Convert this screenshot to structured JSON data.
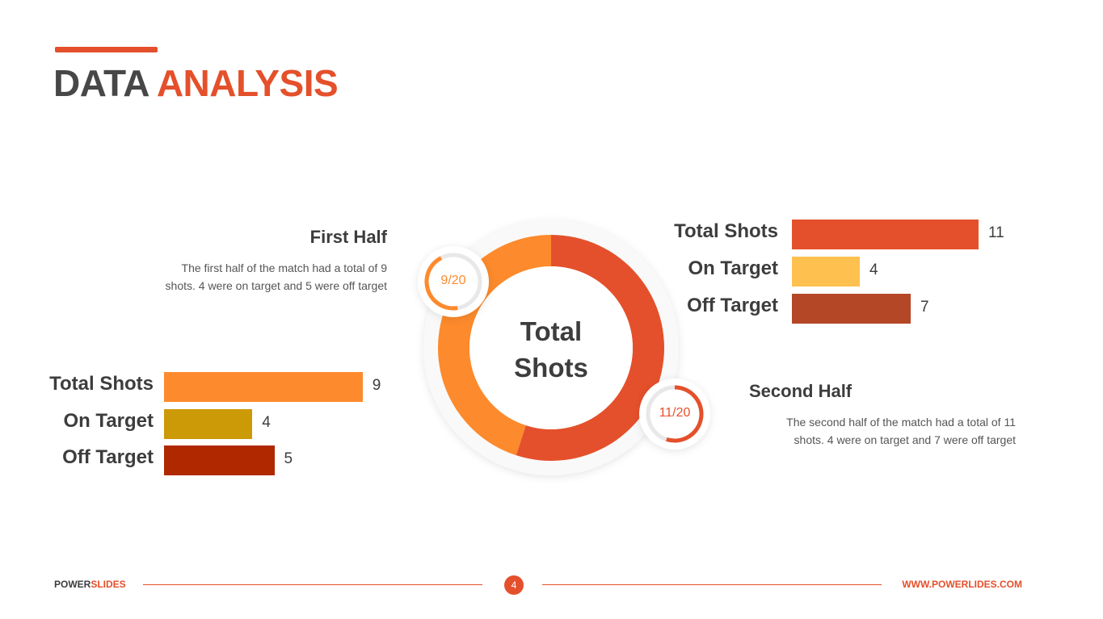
{
  "title": {
    "word1": "DATA",
    "word2": "ANALYSIS"
  },
  "first_half": {
    "heading": "First Half",
    "desc_line1": "The first half of the match had a total of 9",
    "desc_line2": "shots. 4 were on target and 5 were off target",
    "badge": "9/20"
  },
  "second_half": {
    "heading": "Second Half",
    "desc_line1": "The second half of the match had a total of 11",
    "desc_line2": "shots. 4 were on target and 7 were off target",
    "badge": "11/20"
  },
  "donut_center": {
    "line1": "Total",
    "line2": "Shots"
  },
  "footer": {
    "brand_a": "POWER",
    "brand_b": "SLIDES",
    "page": "4",
    "website": "WWW.POWERLIDES.COM"
  },
  "colors": {
    "accent": "#e4502b",
    "first_total": "#fd8a2c",
    "first_on": "#cc9a06",
    "first_off": "#b02800",
    "second_total": "#e4502b",
    "second_on": "#fec04f",
    "second_off": "#b44726"
  },
  "chart_data": [
    {
      "type": "bar",
      "orientation": "horizontal",
      "categories": [
        "Total Shots",
        "On Target",
        "Off Target"
      ],
      "values": [
        9,
        4,
        5
      ]
    },
    {
      "type": "bar",
      "orientation": "horizontal",
      "categories": [
        "Total Shots",
        "On Target",
        "Off Target"
      ],
      "values": [
        11,
        4,
        7
      ]
    },
    {
      "type": "pie",
      "categories": [
        "First Half",
        "Second Half"
      ],
      "values": [
        9,
        11
      ]
    }
  ]
}
